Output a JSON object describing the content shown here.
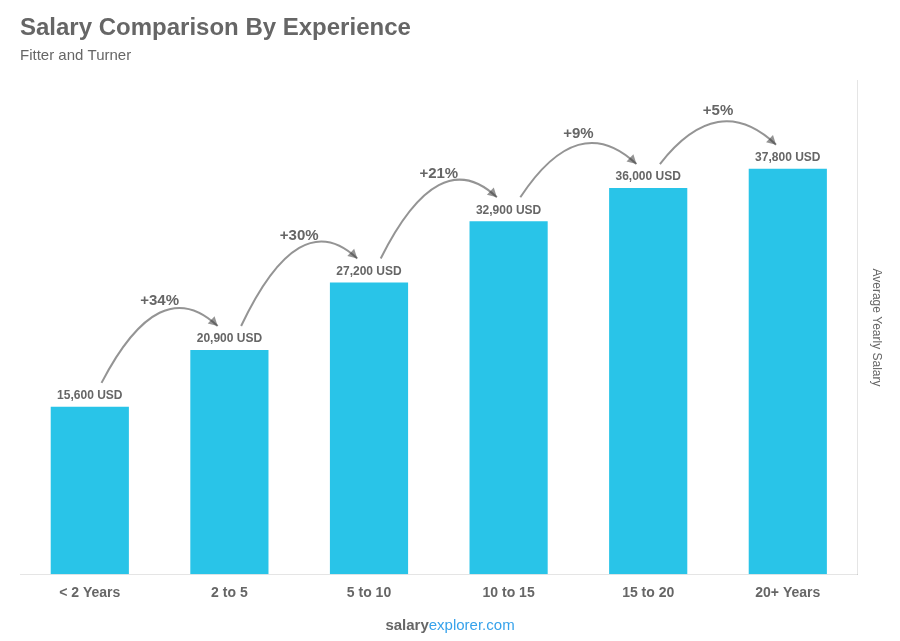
{
  "chart_data": {
    "type": "bar",
    "title": "Salary Comparison By Experience",
    "subtitle": "Fitter and Turner",
    "ylabel": "Average Yearly Salary",
    "footer": [
      "salary",
      "explorer.com"
    ],
    "categories": [
      "< 2 Years",
      "2 to 5",
      "5 to 10",
      "10 to 15",
      "15 to 20",
      "20+ Years"
    ],
    "values": [
      15600,
      20900,
      27200,
      32900,
      36000,
      37800
    ],
    "value_labels": [
      "15,600 USD",
      "20,900 USD",
      "27,200 USD",
      "32,900 USD",
      "36,000 USD",
      "37,800 USD"
    ],
    "data_labels": true,
    "annotations": [
      "+34%",
      "+30%",
      "+21%",
      "+9%",
      "+5%"
    ],
    "color": "#29c4e8",
    "ylim": [
      0,
      46000
    ],
    "grid": false,
    "tick_labels": "x"
  }
}
